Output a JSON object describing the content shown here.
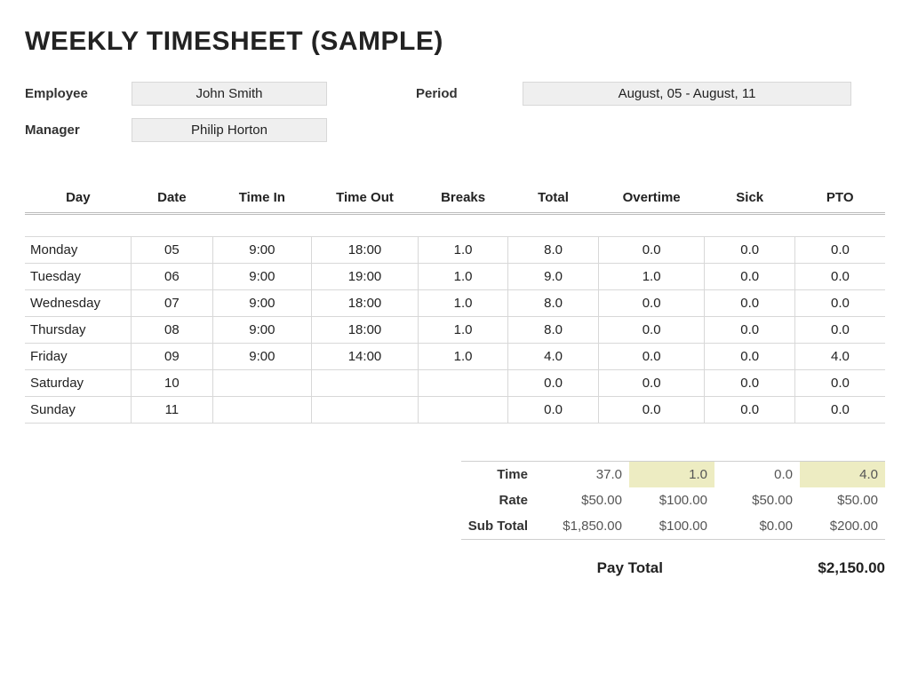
{
  "title": "WEEKLY TIMESHEET (SAMPLE)",
  "meta": {
    "employee_label": "Employee",
    "employee": "John Smith",
    "period_label": "Period",
    "period": "August, 05 - August, 11",
    "manager_label": "Manager",
    "manager": "Philip Horton"
  },
  "columns": {
    "day": "Day",
    "date": "Date",
    "time_in": "Time In",
    "time_out": "Time Out",
    "breaks": "Breaks",
    "total": "Total",
    "overtime": "Overtime",
    "sick": "Sick",
    "pto": "PTO"
  },
  "rows": [
    {
      "day": "Monday",
      "date": "05",
      "in": "9:00",
      "out": "18:00",
      "breaks": "1.0",
      "total": "8.0",
      "ot": "0.0",
      "sick": "0.0",
      "pto": "0.0"
    },
    {
      "day": "Tuesday",
      "date": "06",
      "in": "9:00",
      "out": "19:00",
      "breaks": "1.0",
      "total": "9.0",
      "ot": "1.0",
      "sick": "0.0",
      "pto": "0.0"
    },
    {
      "day": "Wednesday",
      "date": "07",
      "in": "9:00",
      "out": "18:00",
      "breaks": "1.0",
      "total": "8.0",
      "ot": "0.0",
      "sick": "0.0",
      "pto": "0.0"
    },
    {
      "day": "Thursday",
      "date": "08",
      "in": "9:00",
      "out": "18:00",
      "breaks": "1.0",
      "total": "8.0",
      "ot": "0.0",
      "sick": "0.0",
      "pto": "0.0"
    },
    {
      "day": "Friday",
      "date": "09",
      "in": "9:00",
      "out": "14:00",
      "breaks": "1.0",
      "total": "4.0",
      "ot": "0.0",
      "sick": "0.0",
      "pto": "4.0"
    },
    {
      "day": "Saturday",
      "date": "10",
      "in": "",
      "out": "",
      "breaks": "",
      "total": "0.0",
      "ot": "0.0",
      "sick": "0.0",
      "pto": "0.0"
    },
    {
      "day": "Sunday",
      "date": "11",
      "in": "",
      "out": "",
      "breaks": "",
      "total": "0.0",
      "ot": "0.0",
      "sick": "0.0",
      "pto": "0.0"
    }
  ],
  "summary": {
    "time_label": "Time",
    "rate_label": "Rate",
    "subtotal_label": "Sub Total",
    "time": {
      "total": "37.0",
      "ot": "1.0",
      "sick": "0.0",
      "pto": "4.0"
    },
    "rate": {
      "total": "$50.00",
      "ot": "$100.00",
      "sick": "$50.00",
      "pto": "$50.00"
    },
    "subtotal": {
      "total": "$1,850.00",
      "ot": "$100.00",
      "sick": "$0.00",
      "pto": "$200.00"
    },
    "highlight": {
      "ot": true,
      "pto": true
    },
    "highlight_color": "#edecc2"
  },
  "pay_total_label": "Pay Total",
  "pay_total": "$2,150.00",
  "style": {
    "border_color": "#d8d8d8",
    "header_rule_color": "#bcbcbc",
    "meta_bg": "#efefef",
    "text_color": "#222",
    "muted_text": "#555"
  }
}
